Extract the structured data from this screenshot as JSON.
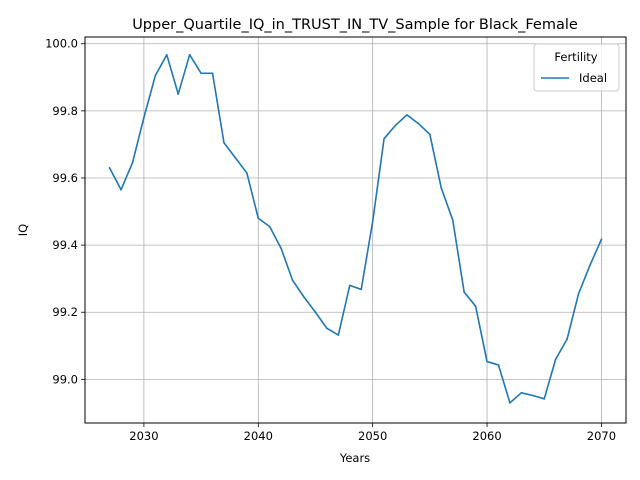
{
  "chart_data": {
    "type": "line",
    "title": "Upper_Quartile_IQ_in_TRUST_IN_TV_Sample for Black_Female",
    "xlabel": "Years",
    "ylabel": "IQ",
    "xlim": [
      2024.85,
      2072.15
    ],
    "ylim": [
      98.87,
      100.02
    ],
    "xticks": [
      2030,
      2040,
      2050,
      2060,
      2070
    ],
    "yticks": [
      99.0,
      99.2,
      99.4,
      99.6,
      99.8,
      100.0
    ],
    "xtick_labels": [
      "2030",
      "2040",
      "2050",
      "2060",
      "2070"
    ],
    "ytick_labels": [
      "99.0",
      "99.2",
      "99.4",
      "99.6",
      "99.8",
      "100.0"
    ],
    "grid": true,
    "legend": {
      "title": "Fertility",
      "position": "top-right"
    },
    "series": [
      {
        "name": "Ideal",
        "color": "#1f77b4",
        "x": [
          2027,
          2028,
          2029,
          2030,
          2031,
          2032,
          2033,
          2034,
          2035,
          2036,
          2037,
          2038,
          2039,
          2040,
          2041,
          2042,
          2043,
          2044,
          2045,
          2046,
          2047,
          2048,
          2049,
          2050,
          2051,
          2052,
          2053,
          2054,
          2055,
          2056,
          2057,
          2058,
          2059,
          2060,
          2061,
          2062,
          2063,
          2064,
          2065,
          2066,
          2067,
          2068,
          2069,
          2070
        ],
        "y": [
          99.63,
          99.565,
          99.645,
          99.78,
          99.905,
          99.967,
          99.85,
          99.967,
          99.912,
          99.912,
          99.705,
          99.66,
          99.615,
          99.48,
          99.455,
          99.39,
          99.295,
          99.245,
          99.2,
          99.152,
          99.132,
          99.28,
          99.268,
          99.47,
          99.717,
          99.757,
          99.788,
          99.762,
          99.73,
          99.57,
          99.475,
          99.26,
          99.218,
          99.053,
          99.043,
          98.93,
          98.96,
          98.952,
          98.942,
          99.06,
          99.12,
          99.255,
          99.34,
          99.417
        ]
      }
    ]
  }
}
